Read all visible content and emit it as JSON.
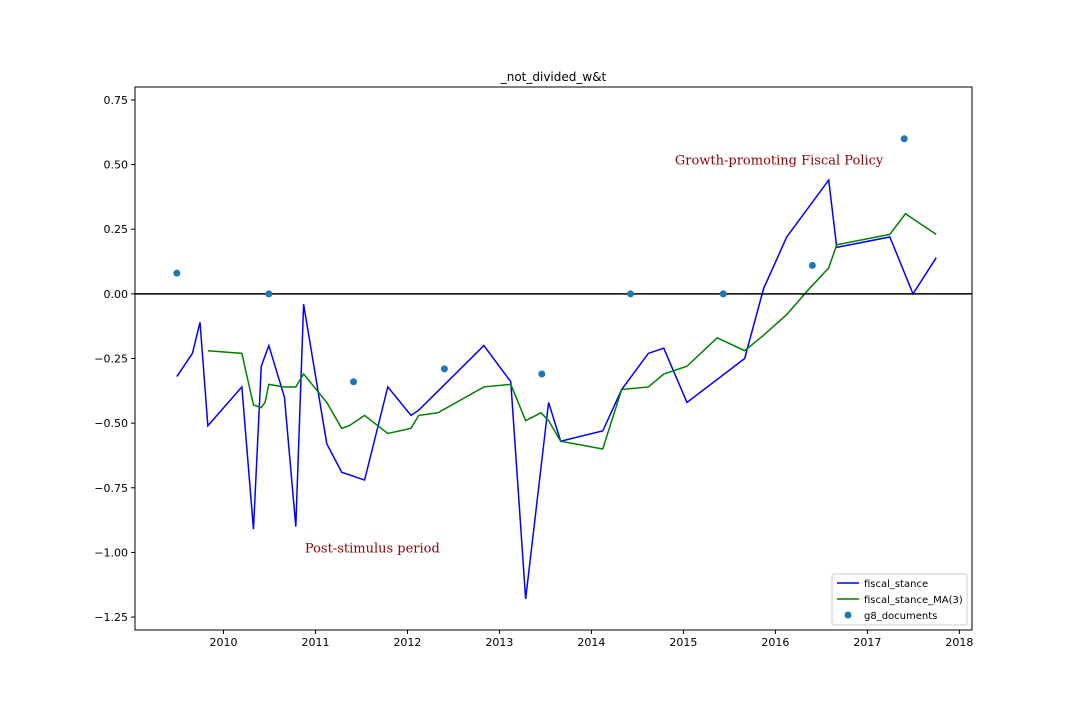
{
  "chart_data": {
    "type": "line",
    "title": "_not_divided_w&t",
    "xlabel": "",
    "ylabel": "",
    "x_ticks": [
      "2010",
      "2011",
      "2012",
      "2013",
      "2014",
      "2015",
      "2016",
      "2017",
      "2018"
    ],
    "y_ticks": [
      "0.75",
      "0.50",
      "0.25",
      "0.00",
      "−0.25",
      "−0.50",
      "−0.75",
      "−1.00",
      "−1.25"
    ],
    "xlim": [
      "2009-01-15",
      "2018-02-20"
    ],
    "ylim": [
      -1.3,
      0.8
    ],
    "grid": false,
    "legend_position": "bottom-right",
    "reference_line": {
      "y": 0.0,
      "color": "#000000"
    },
    "annotations": [
      {
        "text": "Growth-promoting Fiscal Policy",
        "x": "2014-11-28",
        "y": 0.5,
        "color": "#8b0000"
      },
      {
        "text": "Post-stimulus period",
        "x": "2010-11-20",
        "y": -1.0,
        "color": "#8b0000"
      }
    ],
    "series": [
      {
        "name": "fiscal_stance",
        "kind": "line",
        "color": "#0000ff",
        "points": [
          [
            "2009-06-30",
            -0.32
          ],
          [
            "2009-08-31",
            -0.23
          ],
          [
            "2009-09-30",
            -0.11
          ],
          [
            "2009-10-31",
            -0.51
          ],
          [
            "2010-03-15",
            -0.36
          ],
          [
            "2010-04-30",
            -0.91
          ],
          [
            "2010-05-31",
            -0.28
          ],
          [
            "2010-06-30",
            -0.2
          ],
          [
            "2010-08-31",
            -0.4
          ],
          [
            "2010-10-15",
            -0.9
          ],
          [
            "2010-11-15",
            -0.04
          ],
          [
            "2011-02-15",
            -0.58
          ],
          [
            "2011-04-15",
            -0.69
          ],
          [
            "2011-07-15",
            -0.72
          ],
          [
            "2011-10-15",
            -0.36
          ],
          [
            "2012-01-15",
            -0.47
          ],
          [
            "2012-02-15",
            -0.45
          ],
          [
            "2012-10-31",
            -0.2
          ],
          [
            "2013-02-15",
            -0.34
          ],
          [
            "2013-04-15",
            -1.18
          ],
          [
            "2013-07-15",
            -0.42
          ],
          [
            "2013-09-01",
            -0.57
          ],
          [
            "2014-02-15",
            -0.53
          ],
          [
            "2014-05-01",
            -0.37
          ],
          [
            "2014-08-15",
            -0.23
          ],
          [
            "2014-10-15",
            -0.21
          ],
          [
            "2015-01-15",
            -0.42
          ],
          [
            "2015-09-01",
            -0.25
          ],
          [
            "2015-11-15",
            0.02
          ],
          [
            "2016-02-15",
            0.22
          ],
          [
            "2016-07-31",
            0.44
          ],
          [
            "2016-09-01",
            0.18
          ],
          [
            "2017-03-31",
            0.22
          ],
          [
            "2017-07-01",
            0.0
          ],
          [
            "2017-10-01",
            0.14
          ]
        ]
      },
      {
        "name": "fiscal_stance_MA(3)",
        "kind": "line",
        "color": "#008000",
        "points": [
          [
            "2009-10-31",
            -0.22
          ],
          [
            "2010-03-15",
            -0.23
          ],
          [
            "2010-04-30",
            -0.43
          ],
          [
            "2010-05-31",
            -0.44
          ],
          [
            "2010-06-15",
            -0.42
          ],
          [
            "2010-06-30",
            -0.35
          ],
          [
            "2010-08-31",
            -0.36
          ],
          [
            "2010-10-15",
            -0.36
          ],
          [
            "2010-11-15",
            -0.31
          ],
          [
            "2011-02-15",
            -0.42
          ],
          [
            "2011-04-15",
            -0.52
          ],
          [
            "2011-05-15",
            -0.51
          ],
          [
            "2011-07-15",
            -0.47
          ],
          [
            "2011-10-15",
            -0.54
          ],
          [
            "2012-01-15",
            -0.52
          ],
          [
            "2012-02-15",
            -0.47
          ],
          [
            "2012-05-01",
            -0.46
          ],
          [
            "2012-10-31",
            -0.36
          ],
          [
            "2013-02-15",
            -0.35
          ],
          [
            "2013-04-15",
            -0.49
          ],
          [
            "2013-06-15",
            -0.46
          ],
          [
            "2013-07-15",
            -0.49
          ],
          [
            "2013-09-01",
            -0.57
          ],
          [
            "2014-02-15",
            -0.6
          ],
          [
            "2014-05-01",
            -0.37
          ],
          [
            "2014-08-15",
            -0.36
          ],
          [
            "2014-10-15",
            -0.31
          ],
          [
            "2015-01-15",
            -0.28
          ],
          [
            "2015-05-15",
            -0.17
          ],
          [
            "2015-09-01",
            -0.22
          ],
          [
            "2015-11-15",
            -0.16
          ],
          [
            "2016-02-15",
            -0.08
          ],
          [
            "2016-05-15",
            0.02
          ],
          [
            "2016-07-31",
            0.1
          ],
          [
            "2016-09-01",
            0.19
          ],
          [
            "2017-03-31",
            0.23
          ],
          [
            "2017-06-01",
            0.31
          ],
          [
            "2017-07-01",
            0.29
          ],
          [
            "2017-10-01",
            0.23
          ]
        ]
      },
      {
        "name": "g8_documents",
        "kind": "scatter",
        "color": "#1f77b4",
        "points": [
          [
            "2009-06-30",
            0.08
          ],
          [
            "2010-06-30",
            0.0
          ],
          [
            "2011-06-01",
            -0.34
          ],
          [
            "2012-05-27",
            -0.29
          ],
          [
            "2013-06-18",
            -0.31
          ],
          [
            "2014-06-05",
            0.0
          ],
          [
            "2015-06-08",
            0.0
          ],
          [
            "2016-05-27",
            0.11
          ],
          [
            "2017-05-27",
            0.6
          ]
        ]
      }
    ]
  }
}
